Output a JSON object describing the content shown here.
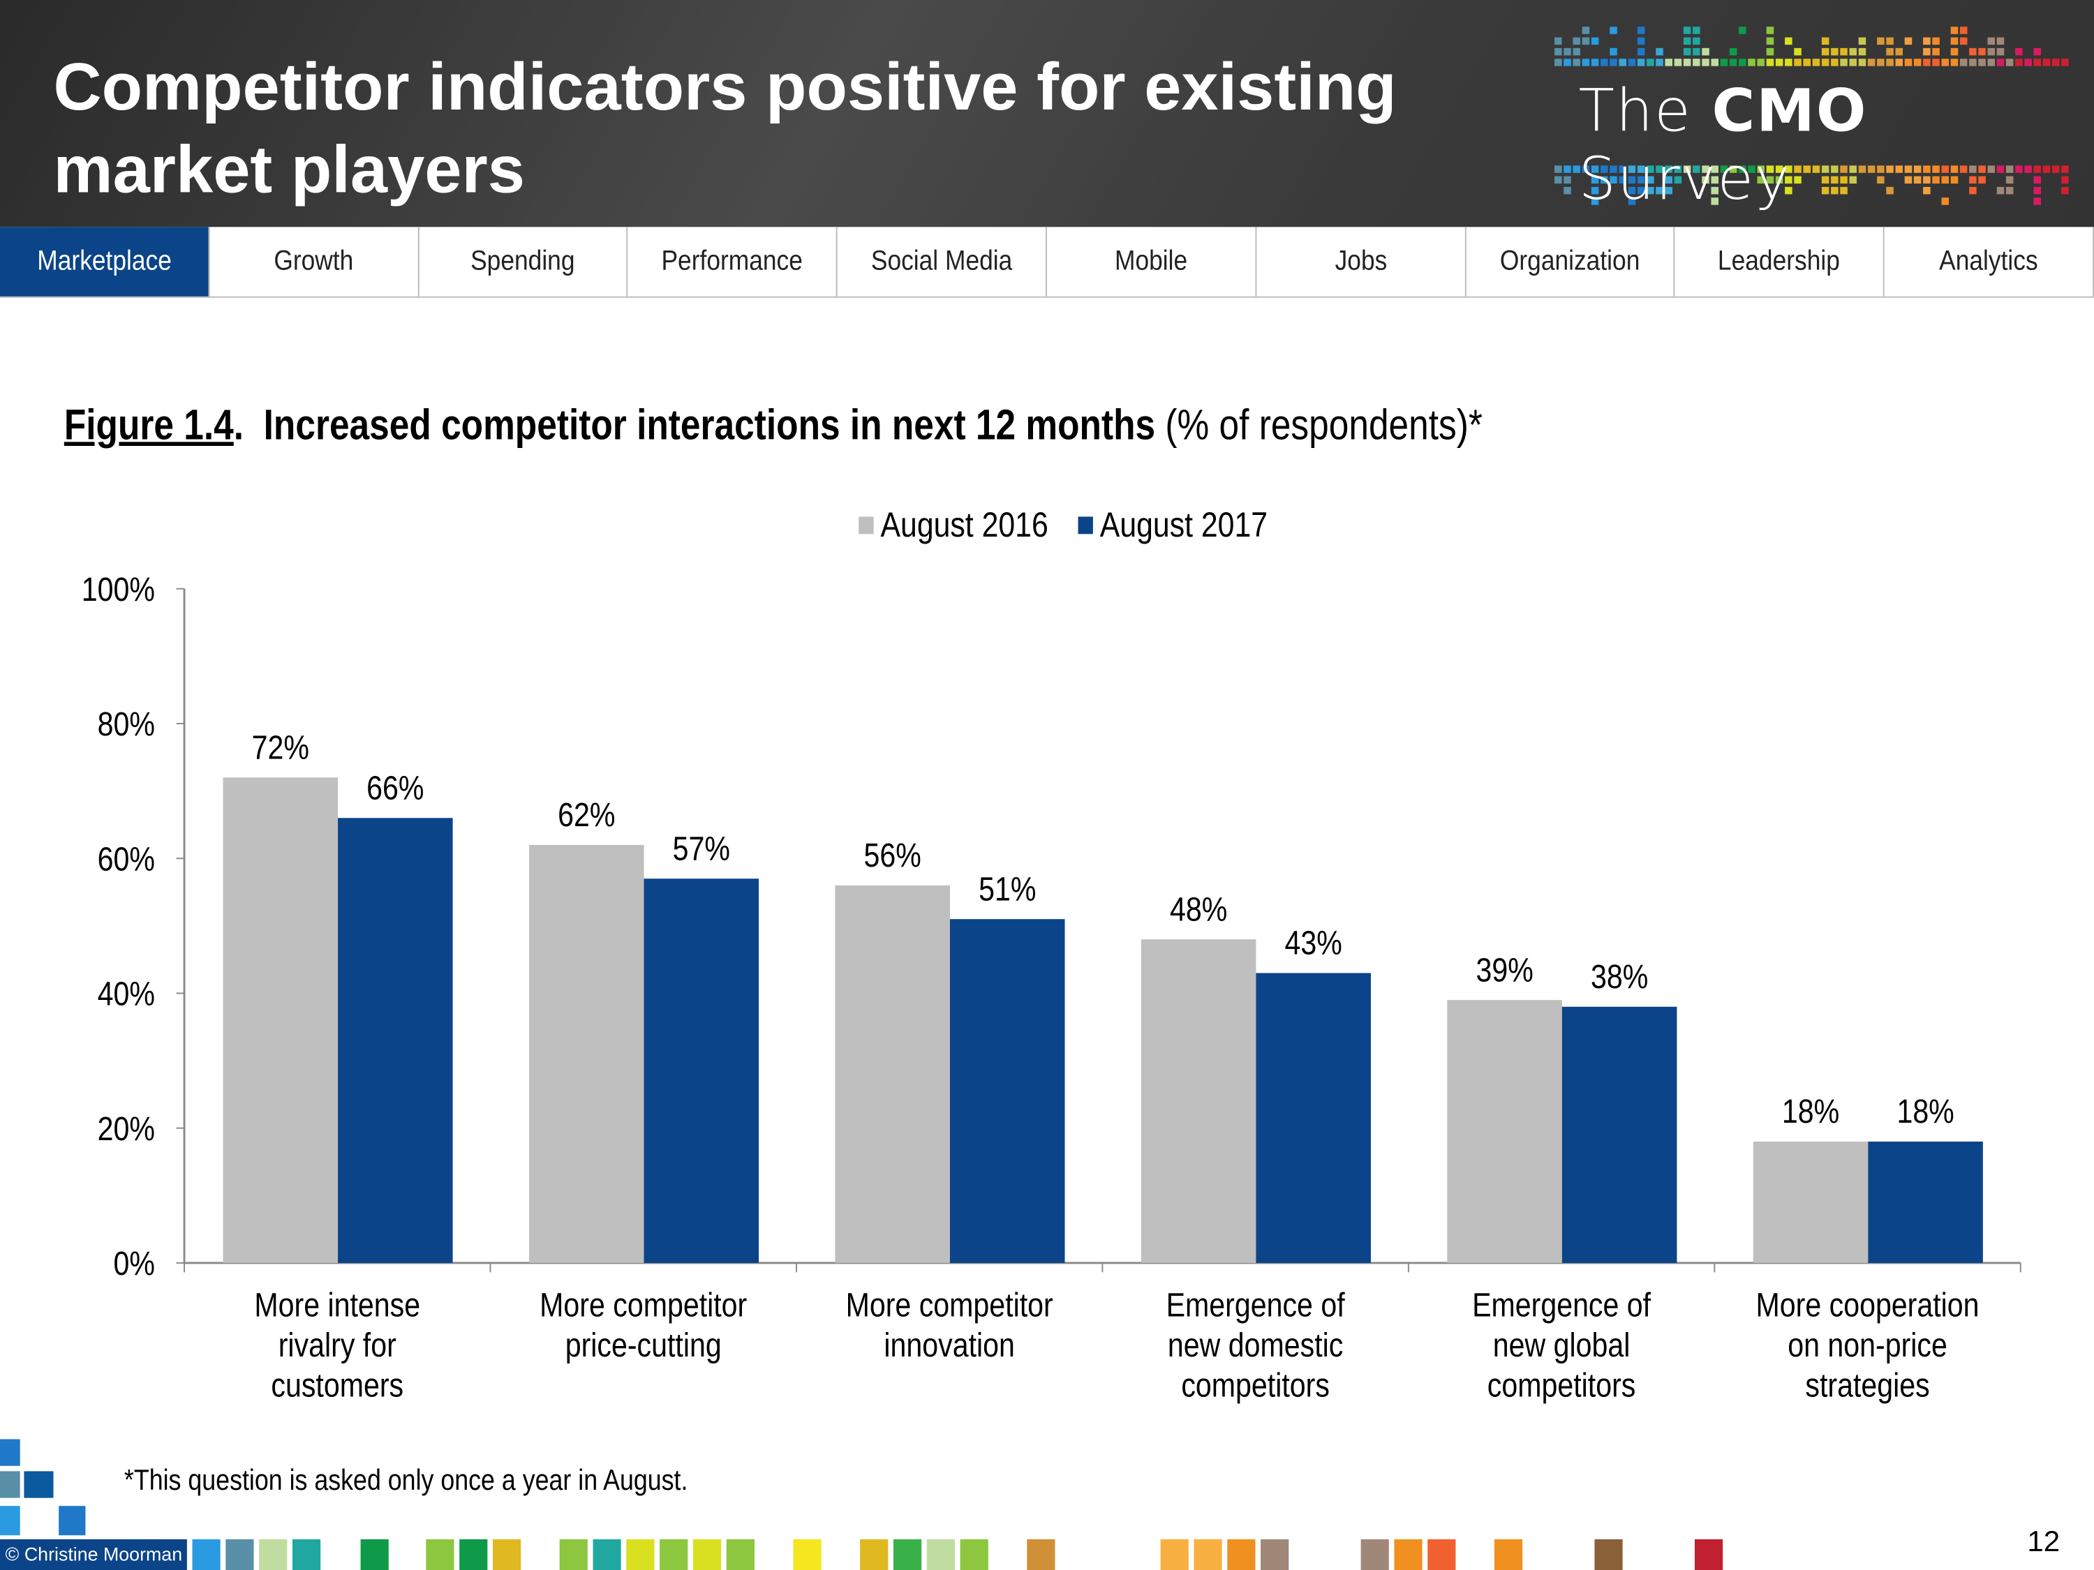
{
  "header": {
    "title": "Competitor indicators positive for existing market players",
    "logo_text_pre": "The ",
    "logo_text_bold": "CMO",
    "logo_text_post": " Survey"
  },
  "nav": {
    "tabs": [
      {
        "label": "Marketplace",
        "active": true
      },
      {
        "label": "Growth"
      },
      {
        "label": "Spending"
      },
      {
        "label": "Performance"
      },
      {
        "label": "Social Media"
      },
      {
        "label": "Mobile"
      },
      {
        "label": "Jobs"
      },
      {
        "label": "Organization"
      },
      {
        "label": "Leadership"
      },
      {
        "label": "Analytics"
      }
    ]
  },
  "figure": {
    "number": "Figure 1.4",
    "title": "Increased competitor interactions in next 12 months",
    "suffix": " (% of respondents)*"
  },
  "chart_data": {
    "type": "bar",
    "categories": [
      "More intense rivalry for customers",
      "More competitor price-cutting",
      "More competitor innovation",
      "Emergence of new domestic competitors",
      "Emergence of new global competitors",
      "More cooperation on non-price strategies"
    ],
    "category_lines": [
      [
        "More intense",
        "rivalry for",
        "customers"
      ],
      [
        "More competitor",
        "price-cutting"
      ],
      [
        "More competitor",
        "innovation"
      ],
      [
        "Emergence of",
        "new domestic",
        "competitors"
      ],
      [
        "Emergence of",
        "new global",
        "competitors"
      ],
      [
        "More cooperation",
        "on non-price",
        "strategies"
      ]
    ],
    "series": [
      {
        "name": "August 2016",
        "color": "#bfbfbf",
        "values": [
          72,
          62,
          56,
          48,
          39,
          18
        ]
      },
      {
        "name": "August 2017",
        "color": "#0b4488",
        "values": [
          66,
          57,
          51,
          43,
          38,
          18
        ]
      }
    ],
    "ylim": [
      0,
      100
    ],
    "yticks": [
      "0%",
      "20%",
      "40%",
      "60%",
      "80%",
      "100%"
    ],
    "data_labels": true,
    "legend": "top",
    "grid": false
  },
  "footnote": "*This question is asked only once a year in August.",
  "copyright": "© Christine Moorman",
  "page_number": "12"
}
